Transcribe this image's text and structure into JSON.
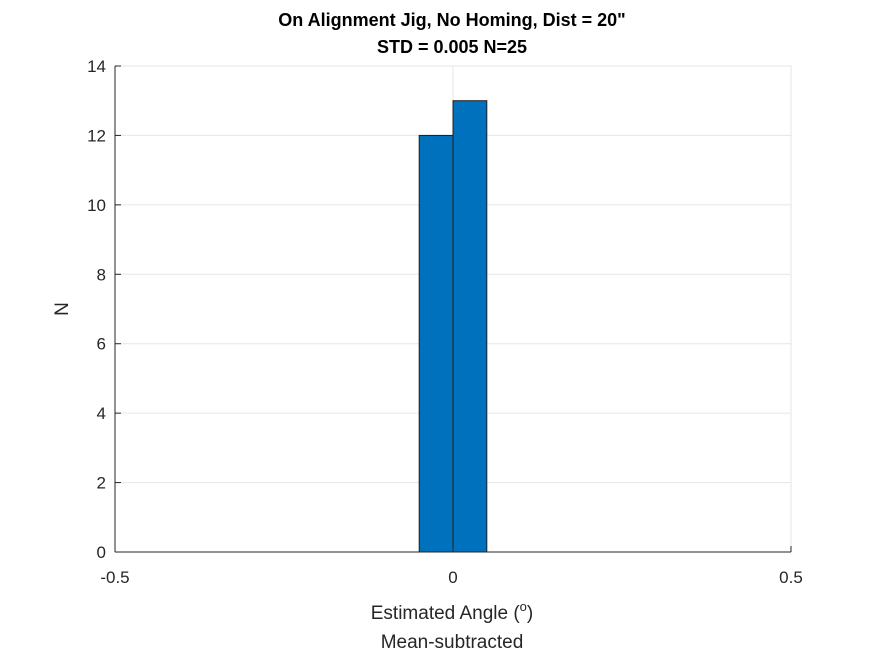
{
  "chart_data": {
    "type": "bar",
    "title_line1": "On Alignment Jig, No Homing, Dist = 20\"",
    "title_line2": "STD = 0.005 N=25",
    "xlabel_main": "Estimated Angle (",
    "xlabel_sup": "o",
    "xlabel_close": ")",
    "xlabel_line2": "Mean-subtracted",
    "ylabel": "N",
    "xlim": [
      -0.5,
      0.5
    ],
    "ylim": [
      0,
      14
    ],
    "xticks": [
      -0.5,
      0,
      0.5
    ],
    "xtick_labels": [
      "-0.5",
      "0",
      "0.5"
    ],
    "yticks": [
      0,
      2,
      4,
      6,
      8,
      10,
      12,
      14
    ],
    "ytick_labels": [
      "0",
      "2",
      "4",
      "6",
      "8",
      "10",
      "12",
      "14"
    ],
    "bins": [
      {
        "left": -0.05,
        "right": 0.0,
        "count": 12
      },
      {
        "left": 0.0,
        "right": 0.05,
        "count": 13
      }
    ],
    "bar_color": "#0072BD",
    "bar_edge_color": "#1f1f1f",
    "grid": true
  }
}
